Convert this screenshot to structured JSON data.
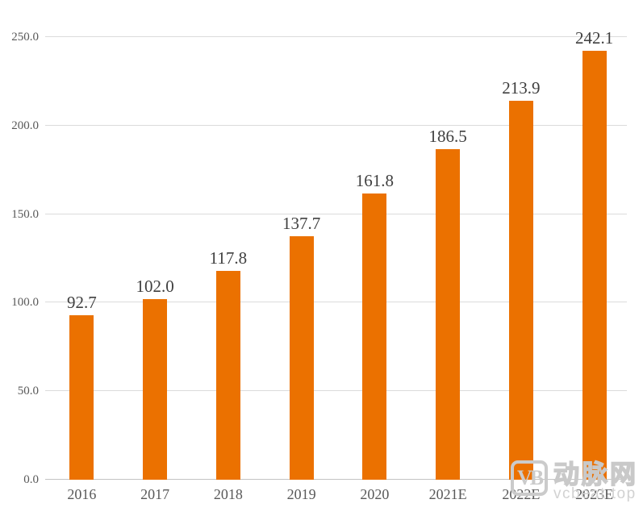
{
  "chart_data": {
    "type": "bar",
    "categories": [
      "2016",
      "2017",
      "2018",
      "2019",
      "2020",
      "2021E",
      "2022E",
      "2023E"
    ],
    "values": [
      92.7,
      102.0,
      117.8,
      137.7,
      161.8,
      186.5,
      213.9,
      242.1
    ],
    "value_labels": [
      "92.7",
      "102.0",
      "117.8",
      "137.7",
      "161.8",
      "186.5",
      "213.9",
      "242.1"
    ],
    "title": "",
    "xlabel": "",
    "ylabel": "",
    "ylim": [
      0,
      250
    ],
    "yticks": [
      0,
      50,
      100,
      150,
      200,
      250
    ],
    "ytick_labels": [
      "0.0",
      "50.0",
      "100.0",
      "150.0",
      "200.0",
      "250.0"
    ],
    "grid": true,
    "legend": false,
    "bar_color": "#EB7100"
  },
  "colors": {
    "background": "#FFFFFF",
    "bar": "#EB7100",
    "gridline": "#DBDBDB",
    "axis_line": "#C3C3C3",
    "value_label": "#3F3F3F",
    "tick_label": "#595959",
    "watermark_gray": "#CBCBCB",
    "watermark_url_gray": "#D2D2D2"
  },
  "watermark": {
    "logo_text": "VB",
    "brand_text": "动脉网",
    "url_text": "vcbeat.top"
  }
}
